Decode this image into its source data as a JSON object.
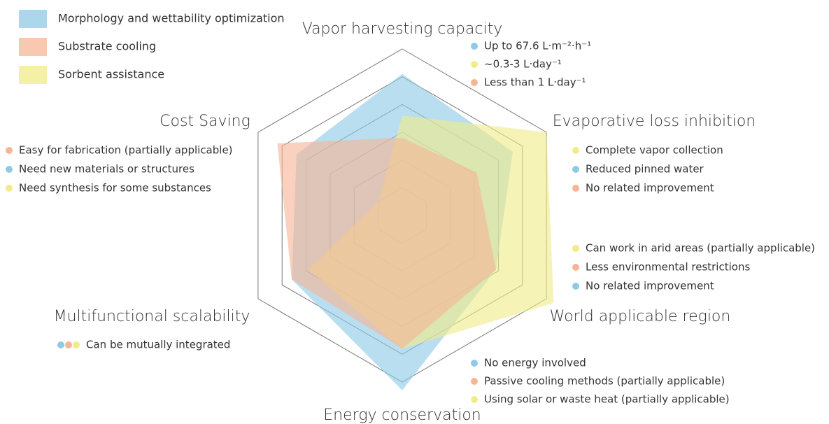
{
  "chart_data": {
    "type": "radar",
    "axes": [
      "Vapor harvesting capacity",
      "Evaporative loss inhibition",
      "World applicable region",
      "Energy conservation",
      "Multifunctional scalability",
      "Cost Saving"
    ],
    "ylim": [
      0,
      6
    ],
    "yticks": [
      1,
      2,
      3,
      4,
      5,
      6
    ],
    "series": [
      {
        "name": "Morphology and wettability optimization",
        "color": "#8ecae6",
        "values": [
          5.1,
          4.6,
          3.9,
          6.3,
          4.6,
          4.4
        ]
      },
      {
        "name": "Sorbent assistance",
        "color": "#f0ec8a",
        "values": [
          3.6,
          6,
          6.3,
          4.8,
          3.9,
          1
        ]
      },
      {
        "name": "Substrate cooling",
        "color": "#f7b596",
        "values": [
          2.8,
          3.1,
          3.9,
          4.8,
          4.6,
          5.2
        ]
      }
    ],
    "legend_order": [
      0,
      2,
      1
    ],
    "notes": [
      [
        {
          "text": "Up to 67.6 L·m⁻²·h⁻¹",
          "colors": [
            "#8ecae6"
          ]
        },
        {
          "text": "~0.3-3 L·day⁻¹",
          "colors": [
            "#f0ec8a"
          ]
        },
        {
          "text": "Less than 1 L·day⁻¹",
          "colors": [
            "#f7b596"
          ]
        }
      ],
      [
        {
          "text": "Complete vapor collection",
          "colors": [
            "#f0ec8a"
          ]
        },
        {
          "text": "Reduced pinned water",
          "colors": [
            "#8ecae6"
          ]
        },
        {
          "text": "No related improvement",
          "colors": [
            "#f7b596"
          ]
        }
      ],
      [
        {
          "text": "Can work in arid areas (partially applicable)",
          "colors": [
            "#f0ec8a"
          ]
        },
        {
          "text": "Less environmental restrictions",
          "colors": [
            "#f7b596"
          ]
        },
        {
          "text": "No related improvement",
          "colors": [
            "#8ecae6"
          ]
        }
      ],
      [
        {
          "text": "No energy involved",
          "colors": [
            "#8ecae6"
          ]
        },
        {
          "text": "Passive cooling methods (partially applicable)",
          "colors": [
            "#f7b596"
          ]
        },
        {
          "text": "Using solar or waste heat (partially applicable)",
          "colors": [
            "#f0ec8a"
          ]
        }
      ],
      [
        {
          "text": "Can be mutually integrated",
          "colors": [
            "#8ecae6",
            "#f7b596",
            "#f0ec8a"
          ]
        }
      ],
      [
        {
          "text": "Easy for fabrication (partially applicable)",
          "colors": [
            "#f7b596"
          ]
        },
        {
          "text": "Need new materials or structures",
          "colors": [
            "#8ecae6"
          ]
        },
        {
          "text": "Need synthesis for some substances",
          "colors": [
            "#f0ec8a"
          ]
        }
      ]
    ]
  }
}
